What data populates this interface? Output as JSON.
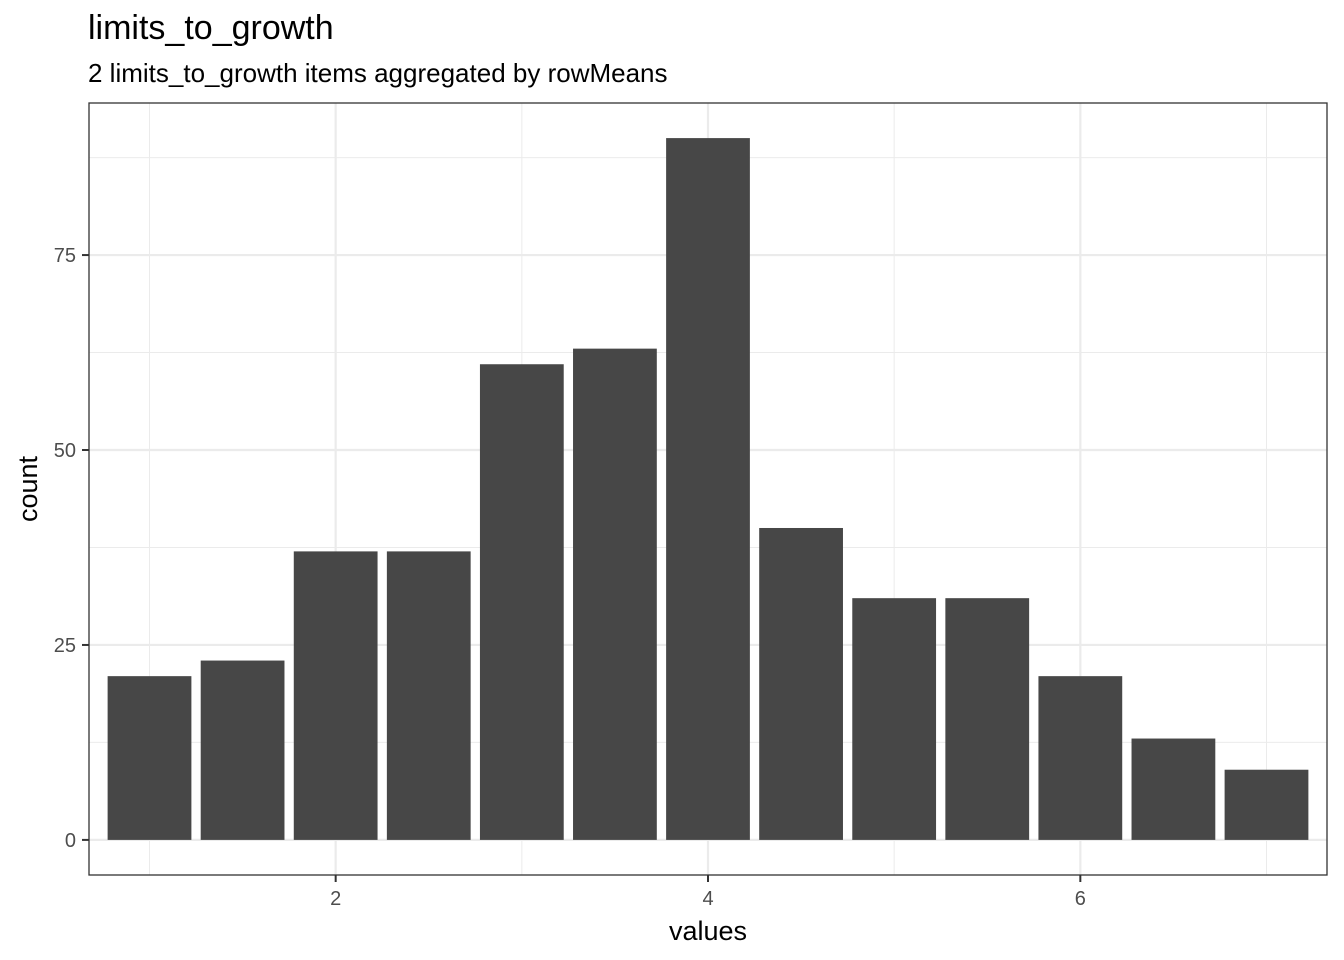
{
  "chart_data": {
    "type": "bar",
    "title": "limits_to_growth",
    "subtitle": "2 limits_to_growth items aggregated by rowMeans",
    "xlabel": "values",
    "ylabel": "count",
    "x": [
      1,
      1.5,
      2,
      2.5,
      3,
      3.5,
      4,
      4.5,
      5,
      5.5,
      6,
      6.5,
      7
    ],
    "values": [
      21,
      23,
      37,
      37,
      61,
      63,
      90,
      40,
      31,
      31,
      21,
      13,
      9
    ],
    "xlim": [
      0.675,
      7.325
    ],
    "ylim": [
      -4.5,
      94.5
    ],
    "x_ticks": [
      2,
      4,
      6
    ],
    "x_tick_labels": [
      "2",
      "4",
      "6"
    ],
    "y_ticks": [
      0,
      25,
      50,
      75
    ],
    "y_tick_labels": [
      "0",
      "25",
      "50",
      "75"
    ],
    "grid": true,
    "bar_color": "#474747"
  }
}
